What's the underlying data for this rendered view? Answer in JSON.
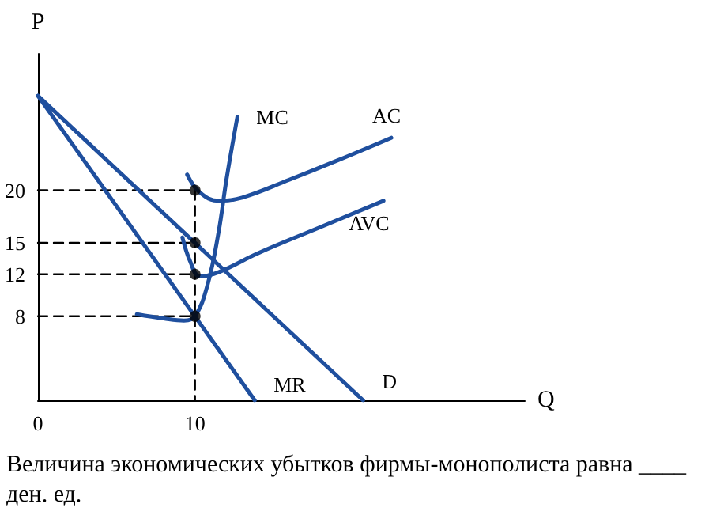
{
  "chart_data": {
    "type": "line",
    "xlabel": "Q",
    "ylabel": "P",
    "xlim": [
      0,
      31
    ],
    "ylim": [
      0,
      33
    ],
    "xticks": [
      0,
      10
    ],
    "yticks": [
      8,
      12,
      15,
      20
    ],
    "grid": false,
    "legend": false,
    "marker": "none",
    "line_style": "solid",
    "annotations": [
      "Величина экономических убытков фирмы-монополиста равна ____ ден. ед."
    ],
    "series": [
      {
        "name": "D",
        "color": "#1f4f9e",
        "x": [
          0,
          20.7
        ],
        "values": [
          29,
          0
        ]
      },
      {
        "name": "MR",
        "color": "#1f4f9e",
        "x": [
          0,
          13.8
        ],
        "values": [
          29,
          0
        ]
      },
      {
        "name": "MC",
        "color": "#1f4f9e",
        "x": [
          6.3,
          8,
          9.3,
          10,
          10.8,
          11.5,
          12,
          12.7
        ],
        "values": [
          8.2,
          7.8,
          7.6,
          8,
          11,
          16,
          21,
          27
        ]
      },
      {
        "name": "AC",
        "color": "#1f4f9e",
        "x": [
          9.5,
          10.3,
          11.5,
          13,
          16,
          19,
          22.5
        ],
        "values": [
          21.5,
          19.8,
          19,
          19.3,
          21,
          22.8,
          25
        ]
      },
      {
        "name": "AVC",
        "color": "#1f4f9e",
        "x": [
          9.2,
          9.7,
          10.3,
          11.5,
          14,
          18,
          22
        ],
        "values": [
          15.5,
          13.2,
          11.8,
          12.2,
          14,
          16.5,
          19
        ]
      },
      {
        "color": "#000000",
        "x": [
          0,
          10
        ],
        "values": [
          20,
          20
        ],
        "line_style": "dashed"
      },
      {
        "color": "#000000",
        "x": [
          0,
          10
        ],
        "values": [
          15,
          15
        ],
        "line_style": "dashed"
      },
      {
        "color": "#000000",
        "x": [
          0,
          10
        ],
        "values": [
          12,
          12
        ],
        "line_style": "dashed"
      },
      {
        "color": "#000000",
        "x": [
          0,
          10
        ],
        "values": [
          8,
          8
        ],
        "line_style": "dashed"
      },
      {
        "color": "#000000",
        "x": [
          10,
          10
        ],
        "values": [
          20,
          0
        ],
        "line_style": "dashed"
      },
      {
        "type": "scatter",
        "color": "#000000",
        "marker": "circle",
        "x": [
          10,
          10,
          10,
          10
        ],
        "values": [
          20,
          15,
          12,
          8
        ]
      }
    ]
  }
}
